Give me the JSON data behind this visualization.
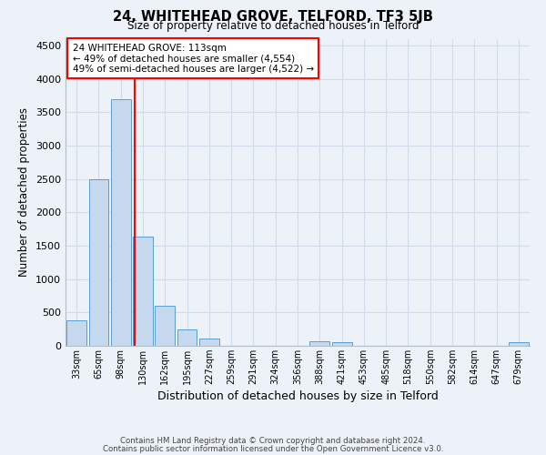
{
  "title": "24, WHITEHEAD GROVE, TELFORD, TF3 5JB",
  "subtitle": "Size of property relative to detached houses in Telford",
  "xlabel": "Distribution of detached houses by size in Telford",
  "ylabel": "Number of detached properties",
  "categories": [
    "33sqm",
    "65sqm",
    "98sqm",
    "130sqm",
    "162sqm",
    "195sqm",
    "227sqm",
    "259sqm",
    "291sqm",
    "324sqm",
    "356sqm",
    "388sqm",
    "421sqm",
    "453sqm",
    "485sqm",
    "518sqm",
    "550sqm",
    "582sqm",
    "614sqm",
    "647sqm",
    "679sqm"
  ],
  "values": [
    380,
    2500,
    3700,
    1630,
    600,
    240,
    110,
    0,
    0,
    0,
    0,
    65,
    55,
    0,
    0,
    0,
    0,
    0,
    0,
    0,
    50
  ],
  "bar_color": "#c5d8ee",
  "bar_edgecolor": "#5a9fd4",
  "vline_color": "red",
  "vline_pos": 2.62,
  "annotation_title": "24 WHITEHEAD GROVE: 113sqm",
  "annotation_line1": "← 49% of detached houses are smaller (4,554)",
  "annotation_line2": "49% of semi-detached houses are larger (4,522) →",
  "ylim": [
    0,
    4600
  ],
  "yticks": [
    0,
    500,
    1000,
    1500,
    2000,
    2500,
    3000,
    3500,
    4000,
    4500
  ],
  "background_color": "#edf2f8",
  "grid_color": "#d0dcea",
  "footer_line1": "Contains HM Land Registry data © Crown copyright and database right 2024.",
  "footer_line2": "Contains public sector information licensed under the Open Government Licence v3.0."
}
